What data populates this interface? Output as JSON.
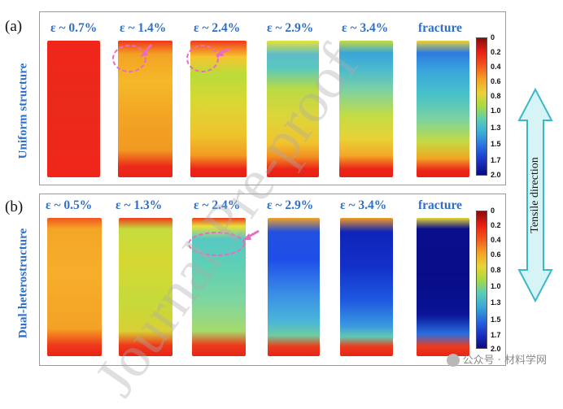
{
  "figure": {
    "panel_a": {
      "tag": "(a)",
      "row_label": "Uniform structure",
      "columns": [
        "ε ~ 0.7%",
        "ε ~ 1.4%",
        "ε ~ 2.4%",
        "ε ~ 2.9%",
        "ε ~ 3.4%",
        "fracture"
      ]
    },
    "panel_b": {
      "tag": "(b)",
      "row_label": "Dual-heterostructure",
      "columns": [
        "ε ~ 0.5%",
        "ε ~ 1.3%",
        "ε ~ 2.4%",
        "ε ~ 2.9%",
        "ε ~ 3.4%",
        "fracture"
      ]
    },
    "colorbar_ticks": [
      "0",
      "0.2",
      "0.4",
      "0.6",
      "0.8",
      "1.0",
      "1.3",
      "1.5",
      "1.7",
      "2.0"
    ],
    "arrow_label": "Tensile direction",
    "watermark": "Journal Pre-proof",
    "credit": "公众号 · 材料学网"
  },
  "colors": {
    "label_blue": "#2f6fc8",
    "arrow_fill": "#d6f4f6",
    "arrow_stroke": "#3bb8c8",
    "marker_pink": "#e86bc4"
  }
}
